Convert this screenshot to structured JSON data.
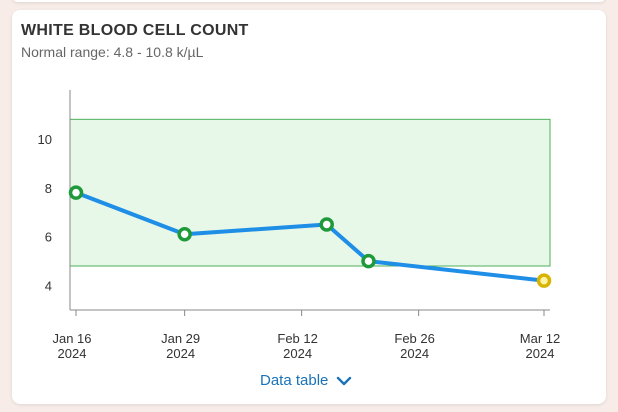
{
  "card": {
    "title": "WHITE BLOOD CELL COUNT",
    "subtitle": "Normal range: 4.8 - 10.8 k/µL",
    "data_table_label": "Data table"
  },
  "colors": {
    "line": "#1e8ee6",
    "normal_band_fill": "#e8f8e8",
    "normal_band_stroke": "#4cb05a",
    "point_normal": "#1e9a3a",
    "point_low": "#d8b400",
    "point_low_fill": "#fff3a8",
    "axis": "#888888",
    "link": "#1a73b8"
  },
  "chart_data": {
    "type": "line",
    "title": "WHITE BLOOD CELL COUNT",
    "subtitle": "Normal range: 4.8 - 10.8 k/µL",
    "normal_range": [
      4.8,
      10.8
    ],
    "ylim": [
      3,
      12
    ],
    "yticks": [
      4,
      6,
      8,
      10
    ],
    "x_ticks": [
      {
        "date": "2024-01-16",
        "label_top": "Jan 16",
        "label_bottom": "2024"
      },
      {
        "date": "2024-01-29",
        "label_top": "Jan 29",
        "label_bottom": "2024"
      },
      {
        "date": "2024-02-12",
        "label_top": "Feb 12",
        "label_bottom": "2024"
      },
      {
        "date": "2024-02-26",
        "label_top": "Feb 26",
        "label_bottom": "2024"
      },
      {
        "date": "2024-03-12",
        "label_top": "Mar 12",
        "label_bottom": "2024"
      }
    ],
    "xlim": [
      "2024-01-16",
      "2024-03-12"
    ],
    "series": [
      {
        "points": [
          {
            "x": "2024-01-16",
            "y": 7.8,
            "status": "normal"
          },
          {
            "x": "2024-01-29",
            "y": 6.1,
            "status": "normal"
          },
          {
            "x": "2024-02-15",
            "y": 6.5,
            "status": "normal"
          },
          {
            "x": "2024-02-20",
            "y": 5.0,
            "status": "normal"
          },
          {
            "x": "2024-03-12",
            "y": 4.2,
            "status": "low"
          }
        ]
      }
    ]
  }
}
